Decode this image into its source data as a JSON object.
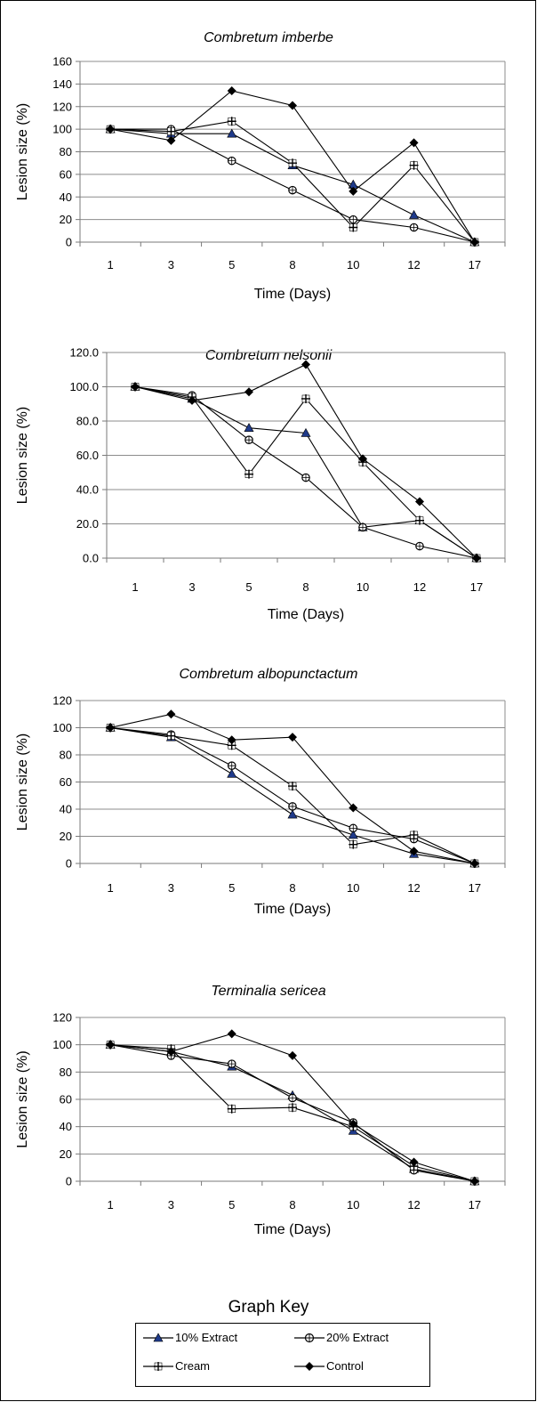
{
  "chart_data": [
    {
      "type": "line",
      "title": "Combretum imberbe",
      "xlabel": "Time (Days)",
      "ylabel": "Lesion size (%)",
      "categories": [
        "1",
        "3",
        "5",
        "8",
        "10",
        "12",
        "17"
      ],
      "ylim": [
        0,
        160
      ],
      "yticks": [
        "0",
        "20",
        "40",
        "60",
        "80",
        "100",
        "120",
        "140",
        "160"
      ],
      "grid": true,
      "series": [
        {
          "name": "10% Extract",
          "marker": "triangle",
          "values": [
            100,
            96,
            96,
            68,
            51,
            24,
            0
          ]
        },
        {
          "name": "20% Extract",
          "marker": "open-star",
          "values": [
            100,
            100,
            72,
            46,
            20,
            13,
            0
          ]
        },
        {
          "name": "Cream",
          "marker": "plus",
          "values": [
            100,
            98,
            107,
            70,
            13,
            68,
            0
          ]
        },
        {
          "name": "Control",
          "marker": "diamond",
          "values": [
            100,
            90,
            134,
            121,
            45,
            88,
            0
          ]
        }
      ]
    },
    {
      "type": "line",
      "title": "Combretum nelsonii",
      "xlabel": "Time (Days)",
      "ylabel": "Lesion size (%)",
      "categories": [
        "1",
        "3",
        "5",
        "8",
        "10",
        "12",
        "17"
      ],
      "ylim": [
        0,
        120
      ],
      "yticks": [
        "0.0",
        "20.0",
        "40.0",
        "60.0",
        "80.0",
        "100.0",
        "120.0"
      ],
      "grid": true,
      "series": [
        {
          "name": "10% Extract",
          "marker": "triangle",
          "values": [
            100,
            93,
            76,
            73,
            18,
            22,
            0
          ]
        },
        {
          "name": "20% Extract",
          "marker": "open-star",
          "values": [
            100,
            95,
            69,
            47,
            18,
            7,
            0
          ]
        },
        {
          "name": "Cream",
          "marker": "plus",
          "values": [
            100,
            94,
            49,
            93,
            56,
            22,
            0
          ]
        },
        {
          "name": "Control",
          "marker": "diamond",
          "values": [
            100,
            92,
            97,
            113,
            58,
            33,
            0
          ]
        }
      ]
    },
    {
      "type": "line",
      "title": "Combretum albopunctactum",
      "xlabel": "Time (Days)",
      "ylabel": "Lesion size (%)",
      "categories": [
        "1",
        "3",
        "5",
        "8",
        "10",
        "12",
        "17"
      ],
      "ylim": [
        0,
        120
      ],
      "yticks": [
        "0",
        "20",
        "40",
        "60",
        "80",
        "100",
        "120"
      ],
      "grid": true,
      "series": [
        {
          "name": "10% Extract",
          "marker": "triangle",
          "values": [
            100,
            93,
            66,
            36,
            21,
            7,
            0
          ]
        },
        {
          "name": "20% Extract",
          "marker": "open-star",
          "values": [
            100,
            95,
            72,
            42,
            26,
            18,
            0
          ]
        },
        {
          "name": "Cream",
          "marker": "plus",
          "values": [
            100,
            94,
            87,
            57,
            14,
            21,
            0
          ]
        },
        {
          "name": "Control",
          "marker": "diamond",
          "values": [
            100,
            110,
            91,
            93,
            41,
            9,
            0
          ]
        }
      ]
    },
    {
      "type": "line",
      "title": "Terminalia sericea",
      "xlabel": "Time (Days)",
      "ylabel": "Lesion size (%)",
      "categories": [
        "1",
        "3",
        "5",
        "8",
        "10",
        "12",
        "17"
      ],
      "ylim": [
        0,
        120
      ],
      "yticks": [
        "0",
        "20",
        "40",
        "60",
        "80",
        "100",
        "120"
      ],
      "grid": true,
      "series": [
        {
          "name": "10% Extract",
          "marker": "triangle",
          "values": [
            100,
            95,
            84,
            63,
            37,
            9,
            0
          ]
        },
        {
          "name": "20% Extract",
          "marker": "open-star",
          "values": [
            100,
            92,
            86,
            61,
            43,
            8,
            0
          ]
        },
        {
          "name": "Cream",
          "marker": "plus",
          "values": [
            100,
            97,
            53,
            54,
            40,
            11,
            0
          ]
        },
        {
          "name": "Control",
          "marker": "diamond",
          "values": [
            100,
            95,
            108,
            92,
            42,
            14,
            0
          ]
        }
      ]
    }
  ],
  "legend": {
    "title": "Graph Key",
    "placement": "bottom",
    "entries": [
      {
        "label": "10% Extract",
        "marker": "triangle",
        "color": "#000000",
        "marker_color": "#1f3a8a"
      },
      {
        "label": "20% Extract",
        "marker": "open-star",
        "color": "#000000"
      },
      {
        "label": "Cream",
        "marker": "plus",
        "color": "#000000"
      },
      {
        "label": "Control",
        "marker": "diamond",
        "color": "#000000"
      }
    ]
  }
}
